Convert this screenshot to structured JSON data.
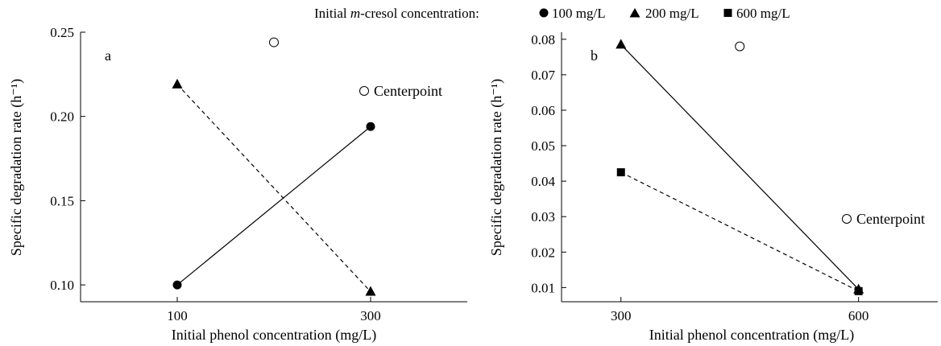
{
  "legend": {
    "prefix": "Initial ",
    "prefix_italic": "m",
    "prefix_rest": "-cresol concentration:",
    "entries": [
      {
        "marker": "circle",
        "label": "100 mg/L"
      },
      {
        "marker": "triangle",
        "label": "200 mg/L"
      },
      {
        "marker": "square",
        "label": "600 mg/L"
      }
    ]
  },
  "chart_data": [
    {
      "type": "line",
      "panel_label": "a",
      "xlabel": "Initial phenol concentration (mg/L)",
      "ylabel": "Specific degradation rate (h⁻¹)",
      "x_ticks": [
        100,
        300
      ],
      "y_ticks": [
        "0.10",
        "0.15",
        "0.20",
        "0.25"
      ],
      "xlim": [
        0,
        400
      ],
      "ylim": [
        0.09,
        0.25
      ],
      "series": [
        {
          "name": "100 mg/L",
          "marker": "circle",
          "line": "solid",
          "points": [
            [
              100,
              0.1
            ],
            [
              300,
              0.194
            ]
          ]
        },
        {
          "name": "200 mg/L",
          "marker": "triangle",
          "line": "dashed",
          "points": [
            [
              100,
              0.219
            ],
            [
              300,
              0.096
            ]
          ]
        }
      ],
      "centerpoint": {
        "label": "Centerpoint",
        "x": 200,
        "y": 0.244
      }
    },
    {
      "type": "line",
      "panel_label": "b",
      "xlabel": "Initial phenol concentration (mg/L)",
      "ylabel": "Specific degradation rate (h⁻¹)",
      "x_ticks": [
        300,
        600
      ],
      "y_ticks": [
        "0.01",
        "0.02",
        "0.03",
        "0.04",
        "0.05",
        "0.06",
        "0.07",
        "0.08"
      ],
      "xlim": [
        225,
        700
      ],
      "ylim": [
        0.006,
        0.082
      ],
      "series": [
        {
          "name": "200 mg/L",
          "marker": "triangle",
          "line": "solid",
          "points": [
            [
              300,
              0.0785
            ],
            [
              600,
              0.0095
            ]
          ]
        },
        {
          "name": "600 mg/L",
          "marker": "square",
          "line": "dashed",
          "points": [
            [
              300,
              0.0425
            ],
            [
              600,
              0.009
            ]
          ]
        }
      ],
      "centerpoint": {
        "label": "Centerpoint",
        "x": 450,
        "y": 0.078
      }
    }
  ]
}
